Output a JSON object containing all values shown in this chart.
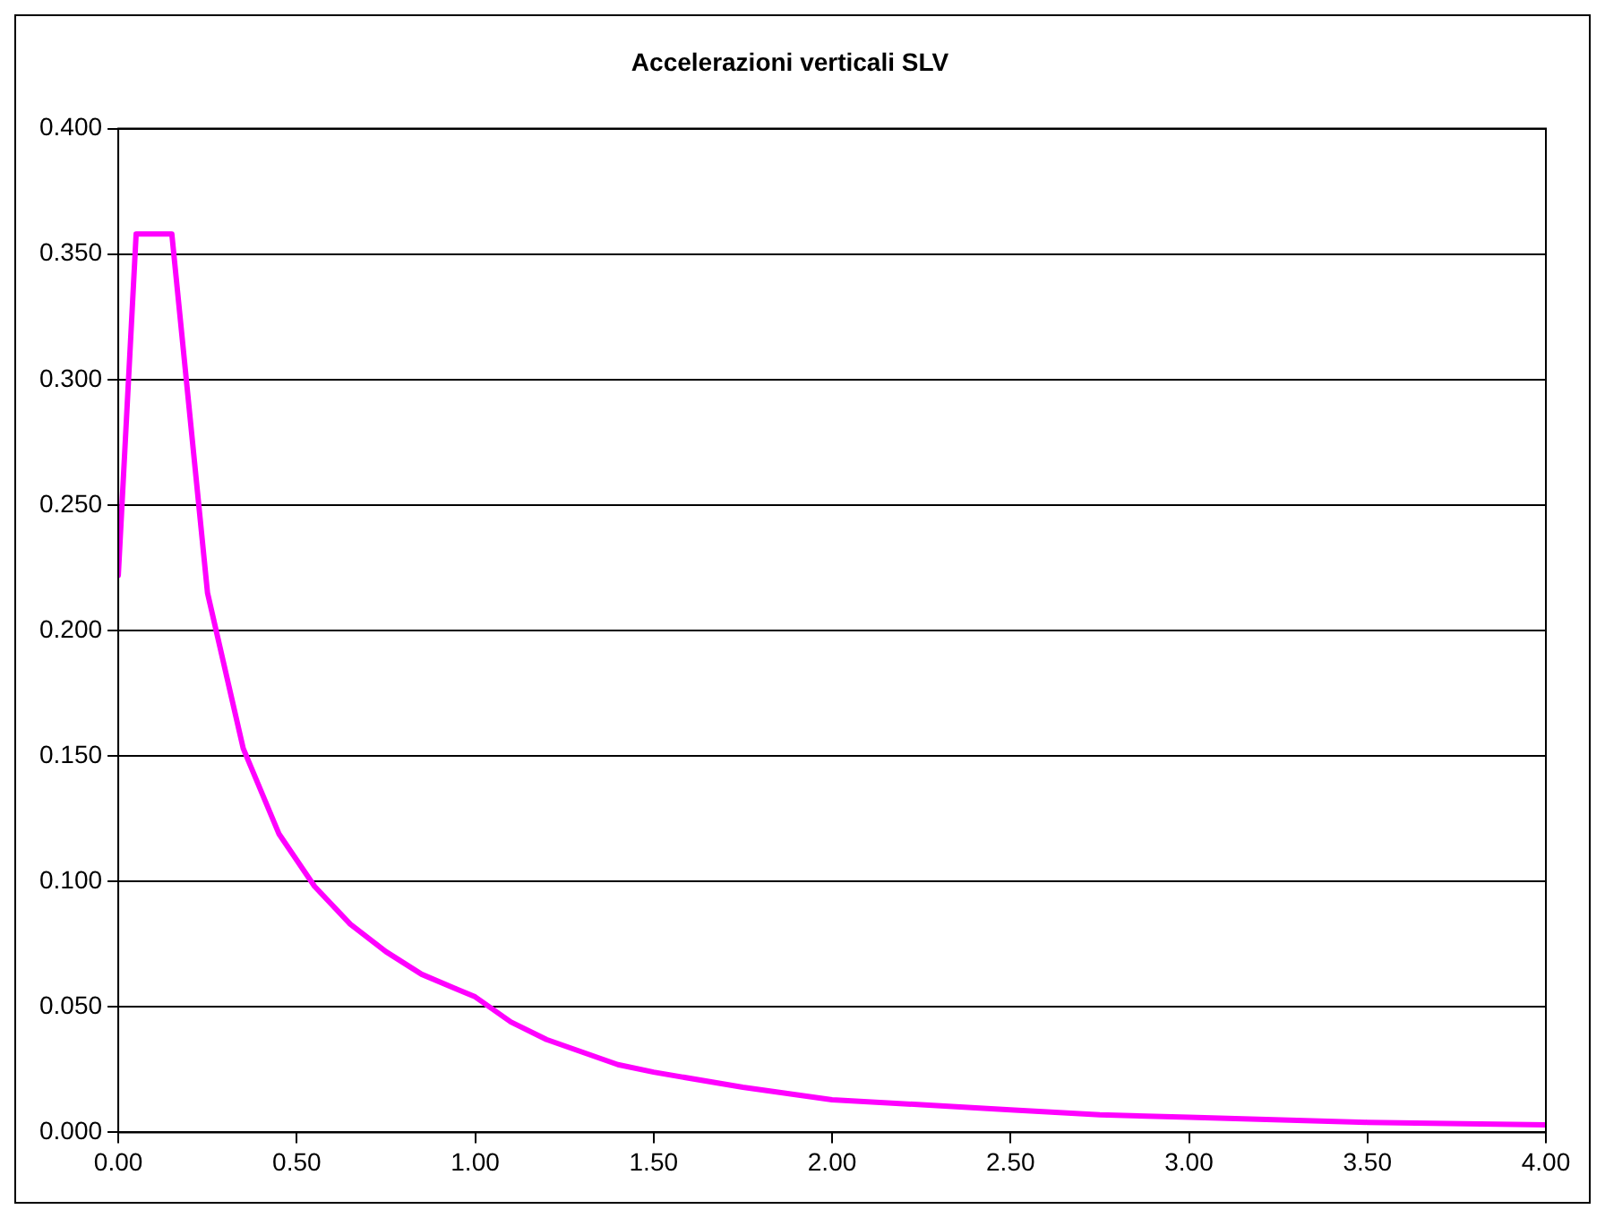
{
  "chart_data": {
    "type": "line",
    "title": "Accelerazioni verticali SLV",
    "x": [
      0,
      0.05,
      0.15,
      0.25,
      0.35,
      0.45,
      0.55,
      0.65,
      0.75,
      0.85,
      0.95,
      1.0,
      1.1,
      1.2,
      1.3,
      1.4,
      1.5,
      1.75,
      2.0,
      2.25,
      2.5,
      2.75,
      3.0,
      3.5,
      4.0
    ],
    "series": [
      {
        "color": "#ff00ff",
        "values": [
          0.222,
          0.358,
          0.358,
          0.215,
          0.153,
          0.119,
          0.098,
          0.083,
          0.072,
          0.063,
          0.057,
          0.054,
          0.044,
          0.037,
          0.032,
          0.027,
          0.024,
          0.018,
          0.013,
          0.011,
          0.009,
          0.007,
          0.006,
          0.004,
          0.003
        ]
      }
    ],
    "xlim": [
      0,
      4
    ],
    "xticks": [
      {
        "value": 0,
        "label": "0.00"
      },
      {
        "value": 0.5,
        "label": "0.50"
      },
      {
        "value": 1,
        "label": "1.00"
      },
      {
        "value": 1.5,
        "label": "1.50"
      },
      {
        "value": 2,
        "label": "2.00"
      },
      {
        "value": 2.5,
        "label": "2.50"
      },
      {
        "value": 3,
        "label": "3.00"
      },
      {
        "value": 3.5,
        "label": "3.50"
      },
      {
        "value": 4,
        "label": "4.00"
      }
    ],
    "ylim": [
      0,
      0.4
    ],
    "yticks": [
      {
        "value": 0,
        "label": "0.000"
      },
      {
        "value": 0.05,
        "label": "0.050"
      },
      {
        "value": 0.1,
        "label": "0.100"
      },
      {
        "value": 0.15,
        "label": "0.150"
      },
      {
        "value": 0.2,
        "label": "0.200"
      },
      {
        "value": 0.25,
        "label": "0.250"
      },
      {
        "value": 0.3,
        "label": "0.300"
      },
      {
        "value": 0.35,
        "label": "0.350"
      },
      {
        "value": 0.4,
        "label": "0.400"
      }
    ],
    "grid": "y",
    "legend": false,
    "marker": "none",
    "line_style": "solid"
  }
}
